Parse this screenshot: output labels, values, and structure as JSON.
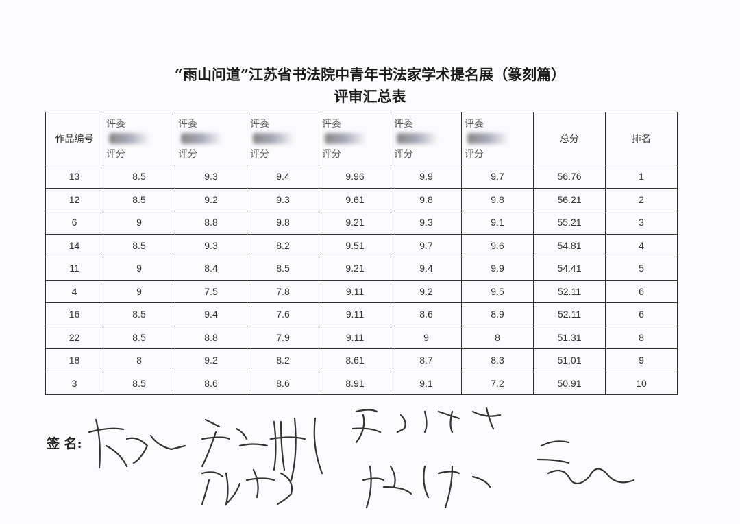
{
  "document": {
    "title": "“雨山问道”江苏省书法院中青年书法家学术提名展（篆刻篇）",
    "subtitle": "评审汇总表"
  },
  "table": {
    "headers": {
      "work_no": "作品编号",
      "judge_top": "评委",
      "judge_bottom": "评分",
      "total": "总分",
      "rank": "排名"
    },
    "rows": [
      [
        "13",
        "8.5",
        "9.3",
        "9.4",
        "9.96",
        "9.9",
        "9.7",
        "56.76",
        "1"
      ],
      [
        "12",
        "8.5",
        "9.2",
        "9.3",
        "9.61",
        "9.8",
        "9.8",
        "56.21",
        "2"
      ],
      [
        "6",
        "9",
        "8.8",
        "9.8",
        "9.21",
        "9.3",
        "9.1",
        "55.21",
        "3"
      ],
      [
        "14",
        "8.5",
        "9.3",
        "8.2",
        "9.51",
        "9.7",
        "9.6",
        "54.81",
        "4"
      ],
      [
        "11",
        "9",
        "8.4",
        "8.5",
        "9.21",
        "9.4",
        "9.9",
        "54.41",
        "5"
      ],
      [
        "4",
        "9",
        "7.5",
        "7.8",
        "9.11",
        "9.2",
        "9.5",
        "52.11",
        "6"
      ],
      [
        "16",
        "8.5",
        "9.4",
        "7.6",
        "9.11",
        "8.6",
        "8.9",
        "52.11",
        "6"
      ],
      [
        "22",
        "8.5",
        "8.8",
        "7.9",
        "9.11",
        "9",
        "8",
        "51.31",
        "8"
      ],
      [
        "18",
        "8",
        "9.2",
        "8.2",
        "8.61",
        "8.7",
        "8.3",
        "51.01",
        "9"
      ],
      [
        "3",
        "8.5",
        "8.6",
        "8.6",
        "8.91",
        "9.1",
        "7.2",
        "50.91",
        "10"
      ]
    ]
  },
  "signature": {
    "label": "签  名:"
  }
}
